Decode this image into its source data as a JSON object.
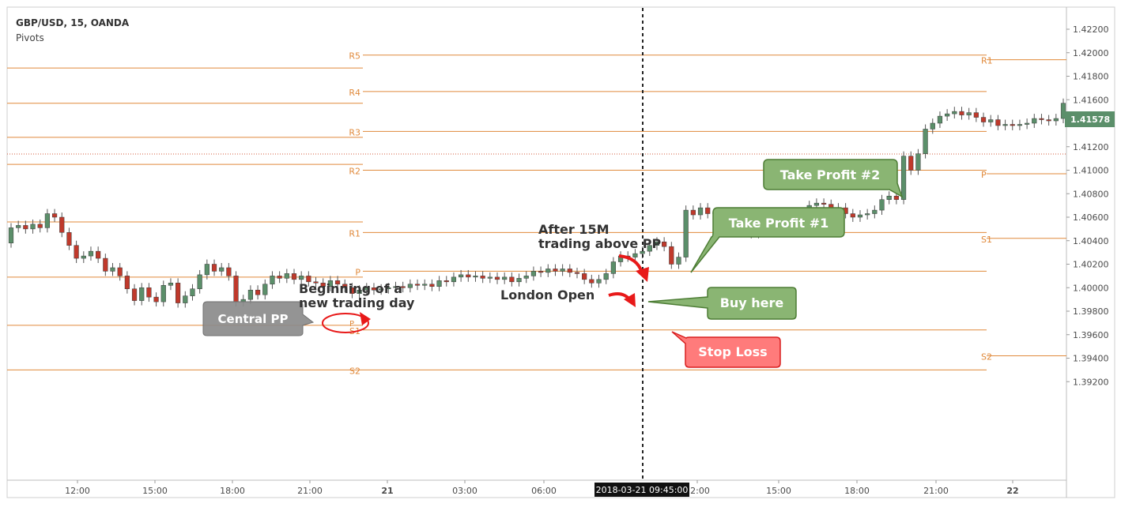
{
  "header": {
    "symbol": "GBP/USD, 15, OANDA",
    "indicator": "Pivots"
  },
  "colors": {
    "up": "#5b8f6a",
    "down": "#c0392b",
    "pivot_line": "#e0893a",
    "pivot_label": "#e0893a",
    "price_tag": "#5b8f6a",
    "callout_green": "#8ab573",
    "callout_green_edge": "#4d7d35",
    "callout_red": "#ff7b7b",
    "callout_red_edge": "#d81f1f",
    "callout_gray": "#8b8b8b",
    "axis_text": "#4a4a4a",
    "arrow": "#e81919"
  },
  "chart_data": {
    "type": "candlestick",
    "title": "GBP/USD, 15, OANDA",
    "ylim": [
      1.391,
      1.4232
    ],
    "y_ticks": [
      "1.42200",
      "1.42000",
      "1.41800",
      "1.41600",
      "1.41400",
      "1.41200",
      "1.41000",
      "1.40800",
      "1.40600",
      "1.40400",
      "1.40200",
      "1.40000",
      "1.39800",
      "1.39600",
      "1.39400",
      "1.39200"
    ],
    "x_ticks": [
      "12:00",
      "15:00",
      "18:00",
      "21:00",
      "21",
      "03:00",
      "06:00",
      "12:00",
      "15:00",
      "18:00",
      "21:00",
      "22"
    ],
    "last_price": "1.41578",
    "crosshair_time": "2018-03-21 09:45:00",
    "pivot_sessions": [
      {
        "levels": [
          {
            "name": "R5",
            "value": 1.4187
          },
          {
            "name": "R4",
            "value": 1.4157
          },
          {
            "name": "R3",
            "value": 1.4128
          },
          {
            "name": "R2",
            "value": 1.4105
          },
          {
            "name": "R1",
            "value": 1.4056
          },
          {
            "name": "P",
            "value": 1.4009
          },
          {
            "name": "S1",
            "value": 1.3968
          },
          {
            "name": "S2",
            "value": 1.393
          }
        ]
      },
      {
        "levels": [
          {
            "name": "R5",
            "value": 1.4198
          },
          {
            "name": "R4",
            "value": 1.4167
          },
          {
            "name": "R3",
            "value": 1.4133
          },
          {
            "name": "R2",
            "value": 1.41
          },
          {
            "name": "R1",
            "value": 1.4047
          },
          {
            "name": "P",
            "value": 1.4014
          },
          {
            "name": "S1",
            "value": 1.3964
          },
          {
            "name": "S2",
            "value": 1.393
          }
        ]
      },
      {
        "levels": [
          {
            "name": "R1",
            "value": 1.4194
          },
          {
            "name": "P",
            "value": 1.4097
          },
          {
            "name": "S1",
            "value": 1.4042
          },
          {
            "name": "S2",
            "value": 1.3942
          }
        ]
      }
    ],
    "candles": [
      [
        1.4038,
        1.4051
      ],
      [
        1.4051,
        1.4053
      ],
      [
        1.4053,
        1.405
      ],
      [
        1.405,
        1.4054
      ],
      [
        1.4054,
        1.4051
      ],
      [
        1.4051,
        1.4063
      ],
      [
        1.4063,
        1.406
      ],
      [
        1.406,
        1.4047
      ],
      [
        1.4047,
        1.4036
      ],
      [
        1.4036,
        1.4025
      ],
      [
        1.4025,
        1.4027
      ],
      [
        1.4027,
        1.4031
      ],
      [
        1.4031,
        1.4025
      ],
      [
        1.4025,
        1.4014
      ],
      [
        1.4014,
        1.4017
      ],
      [
        1.4017,
        1.401
      ],
      [
        1.401,
        1.3999
      ],
      [
        1.3999,
        1.3989
      ],
      [
        1.3989,
        1.4
      ],
      [
        1.4,
        1.3992
      ],
      [
        1.3992,
        1.3988
      ],
      [
        1.3988,
        1.4002
      ],
      [
        1.4002,
        1.4004
      ],
      [
        1.4004,
        1.3987
      ],
      [
        1.3987,
        1.3993
      ],
      [
        1.3993,
        1.3999
      ],
      [
        1.3999,
        1.4011
      ],
      [
        1.4011,
        1.402
      ],
      [
        1.402,
        1.4014
      ],
      [
        1.4014,
        1.4017
      ],
      [
        1.4017,
        1.401
      ],
      [
        1.401,
        1.3988
      ],
      [
        1.3988,
        1.399
      ],
      [
        1.399,
        1.3998
      ],
      [
        1.3998,
        1.3994
      ],
      [
        1.3994,
        1.4003
      ],
      [
        1.4003,
        1.401
      ],
      [
        1.401,
        1.4008
      ],
      [
        1.4008,
        1.4012
      ],
      [
        1.4012,
        1.4007
      ],
      [
        1.4007,
        1.401
      ],
      [
        1.401,
        1.4005
      ],
      [
        1.4005,
        1.4004
      ],
      [
        1.4004,
        1.4001
      ],
      [
        1.4001,
        1.4006
      ],
      [
        1.4006,
        1.4003
      ],
      [
        1.4003,
        1.4
      ],
      [
        1.4,
        1.3995
      ],
      [
        1.3995,
        1.3998
      ],
      [
        1.3998,
        1.4
      ],
      [
        1.4,
        1.3998
      ],
      [
        1.3998,
        1.3999
      ],
      [
        1.3999,
        1.4
      ],
      [
        1.4,
        1.4001
      ],
      [
        1.4001,
        1.4
      ],
      [
        1.4,
        1.4003
      ],
      [
        1.4003,
        1.4002
      ],
      [
        1.4002,
        1.4003
      ],
      [
        1.4003,
        1.4001
      ],
      [
        1.4001,
        1.4006
      ],
      [
        1.4006,
        1.4005
      ],
      [
        1.4005,
        1.4009
      ],
      [
        1.4009,
        1.4011
      ],
      [
        1.4011,
        1.4009
      ],
      [
        1.4009,
        1.401
      ],
      [
        1.401,
        1.4008
      ],
      [
        1.4008,
        1.4009
      ],
      [
        1.4009,
        1.4007
      ],
      [
        1.4007,
        1.4009
      ],
      [
        1.4009,
        1.4005
      ],
      [
        1.4005,
        1.4008
      ],
      [
        1.4008,
        1.401
      ],
      [
        1.401,
        1.4014
      ],
      [
        1.4014,
        1.4013
      ],
      [
        1.4013,
        1.4016
      ],
      [
        1.4016,
        1.4014
      ],
      [
        1.4014,
        1.4016
      ],
      [
        1.4016,
        1.4013
      ],
      [
        1.4013,
        1.4012
      ],
      [
        1.4012,
        1.4007
      ],
      [
        1.4007,
        1.4004
      ],
      [
        1.4004,
        1.4007
      ],
      [
        1.4007,
        1.4012
      ],
      [
        1.4012,
        1.4022
      ],
      [
        1.4022,
        1.4027
      ],
      [
        1.4027,
        1.4026
      ],
      [
        1.4026,
        1.4029
      ],
      [
        1.4029,
        1.4031
      ],
      [
        1.4031,
        1.4036
      ],
      [
        1.4036,
        1.4039
      ],
      [
        1.4039,
        1.4035
      ],
      [
        1.4035,
        1.402
      ],
      [
        1.402,
        1.4026
      ],
      [
        1.4026,
        1.4066
      ],
      [
        1.4066,
        1.4062
      ],
      [
        1.4062,
        1.4068
      ],
      [
        1.4068,
        1.4063
      ],
      [
        1.4063,
        1.4064
      ],
      [
        1.4064,
        1.4058
      ],
      [
        1.4058,
        1.406
      ],
      [
        1.406,
        1.4056
      ],
      [
        1.4056,
        1.4052
      ],
      [
        1.4052,
        1.4046
      ],
      [
        1.4046,
        1.4051
      ],
      [
        1.4051,
        1.4048
      ],
      [
        1.4048,
        1.4054
      ],
      [
        1.4054,
        1.4062
      ],
      [
        1.4062,
        1.406
      ],
      [
        1.406,
        1.4064
      ],
      [
        1.4064,
        1.4062
      ],
      [
        1.4062,
        1.407
      ],
      [
        1.407,
        1.4072
      ],
      [
        1.4072,
        1.4071
      ],
      [
        1.4071,
        1.4061
      ],
      [
        1.4061,
        1.4068
      ],
      [
        1.4068,
        1.4063
      ],
      [
        1.4063,
        1.406
      ],
      [
        1.406,
        1.4062
      ],
      [
        1.4062,
        1.4063
      ],
      [
        1.4063,
        1.4066
      ],
      [
        1.4066,
        1.4075
      ],
      [
        1.4075,
        1.4078
      ],
      [
        1.4078,
        1.4075
      ],
      [
        1.4075,
        1.4112
      ],
      [
        1.4112,
        1.41
      ],
      [
        1.41,
        1.4114
      ],
      [
        1.4114,
        1.4135
      ],
      [
        1.4135,
        1.414
      ],
      [
        1.414,
        1.4146
      ],
      [
        1.4146,
        1.4148
      ],
      [
        1.4148,
        1.415
      ],
      [
        1.415,
        1.4147
      ],
      [
        1.4147,
        1.4149
      ],
      [
        1.4149,
        1.4145
      ],
      [
        1.4145,
        1.4141
      ],
      [
        1.4141,
        1.4143
      ],
      [
        1.4143,
        1.4138
      ],
      [
        1.4138,
        1.4139
      ],
      [
        1.4139,
        1.4138
      ],
      [
        1.4138,
        1.4139
      ],
      [
        1.4139,
        1.414
      ],
      [
        1.414,
        1.4144
      ],
      [
        1.4144,
        1.4143
      ],
      [
        1.4143,
        1.4142
      ],
      [
        1.4142,
        1.4144
      ],
      [
        1.4144,
        1.4157
      ]
    ]
  },
  "annotations": {
    "central_pp": "Central PP",
    "beginning_line1": "Beginning of a",
    "beginning_line2": "new trading day",
    "after_line1": "After 15M",
    "after_line2": "trading above PP",
    "london_open": "London Open",
    "take_profit_2": "Take Profit #2",
    "take_profit_1": "Take Profit #1",
    "buy_here": "Buy here",
    "stop_loss": "Stop Loss",
    "p_marker": "P"
  }
}
